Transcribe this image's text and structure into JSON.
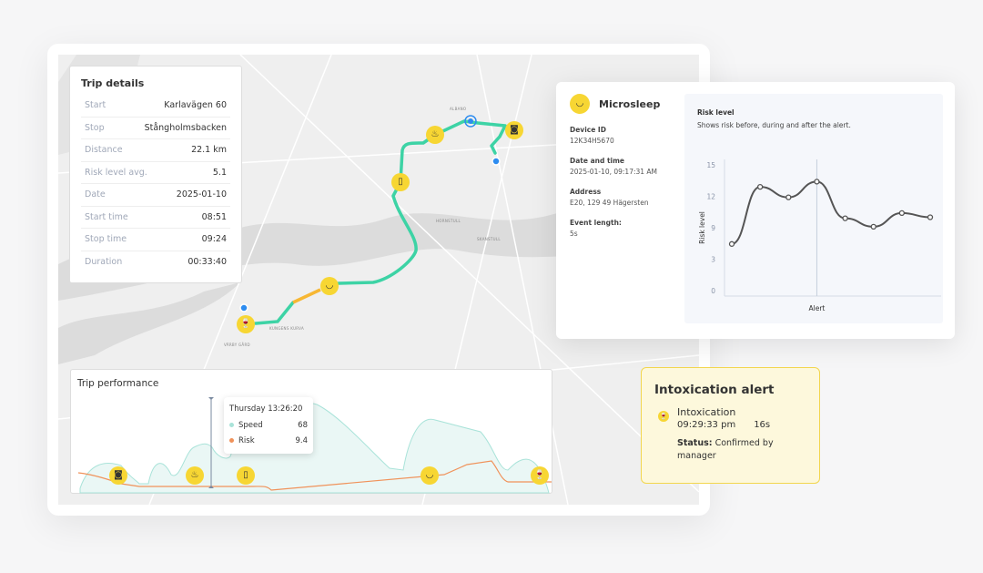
{
  "colors": {
    "route": "#3dd3a5",
    "route_alt": "#f7b733",
    "marker": "#f7d633",
    "speed": "#a9e3d9",
    "risk": "#f0925a",
    "blue": "#2d8cf0"
  },
  "map": {
    "labels": [
      "ALBANO",
      "HORNSTULL",
      "SKANSTULL",
      "KUNGENS KURVA",
      "VÄRBY GÅRD"
    ],
    "markers": [
      {
        "icon": "intoxication-icon",
        "glyph": "🍷"
      },
      {
        "icon": "microsleep-icon",
        "glyph": "◡"
      },
      {
        "icon": "phone-icon",
        "glyph": "▯"
      },
      {
        "icon": "smoking-icon",
        "glyph": "♨"
      },
      {
        "icon": "camera-blocked-icon",
        "glyph": "◙"
      }
    ]
  },
  "trip_details": {
    "title": "Trip details",
    "rows": [
      {
        "label": "Start",
        "value": "Karlavägen 60"
      },
      {
        "label": "Stop",
        "value": "Stångholmsbacken"
      },
      {
        "label": "Distance",
        "value": "22.1 km"
      },
      {
        "label": "Risk level avg.",
        "value": "5.1"
      },
      {
        "label": "Date",
        "value": "2025-01-10"
      },
      {
        "label": "Start time",
        "value": "08:51"
      },
      {
        "label": "Stop time",
        "value": "09:24"
      },
      {
        "label": "Duration",
        "value": "00:33:40"
      }
    ]
  },
  "trip_performance": {
    "title": "Trip performance",
    "tooltip": {
      "time": "Thursday 13:26:20",
      "speed_label": "Speed",
      "speed": "68",
      "risk_label": "Risk",
      "risk": "9.4"
    }
  },
  "microsleep": {
    "title": "Microsleep",
    "fields": [
      {
        "label": "Device ID",
        "value": "12K34H5670"
      },
      {
        "label": "Date and time",
        "value": "2025-01-10, 09:17:31 AM"
      },
      {
        "label": "Address",
        "value": "E20, 129 49 Hägersten"
      },
      {
        "label": "Event length:",
        "value": "5s"
      }
    ],
    "panel_title": "Risk level",
    "panel_subtitle": "Shows risk before, during and after the alert."
  },
  "chart_data": {
    "type": "line",
    "title": "Risk level",
    "ylabel": "Risk level",
    "xlabel": "Alert",
    "yticks": [
      0,
      3,
      9,
      12,
      15
    ],
    "ylim": [
      0,
      15
    ],
    "alert_index": 3,
    "values": [
      5.9,
      12.9,
      11.9,
      13.4,
      9.9,
      9.1,
      10.4,
      10.0
    ]
  },
  "intoxication": {
    "title": "Intoxication alert",
    "event": "Intoxication",
    "time": "09:29:33 pm",
    "duration": "16s",
    "status_label": "Status:",
    "status": "Confirmed by manager"
  }
}
